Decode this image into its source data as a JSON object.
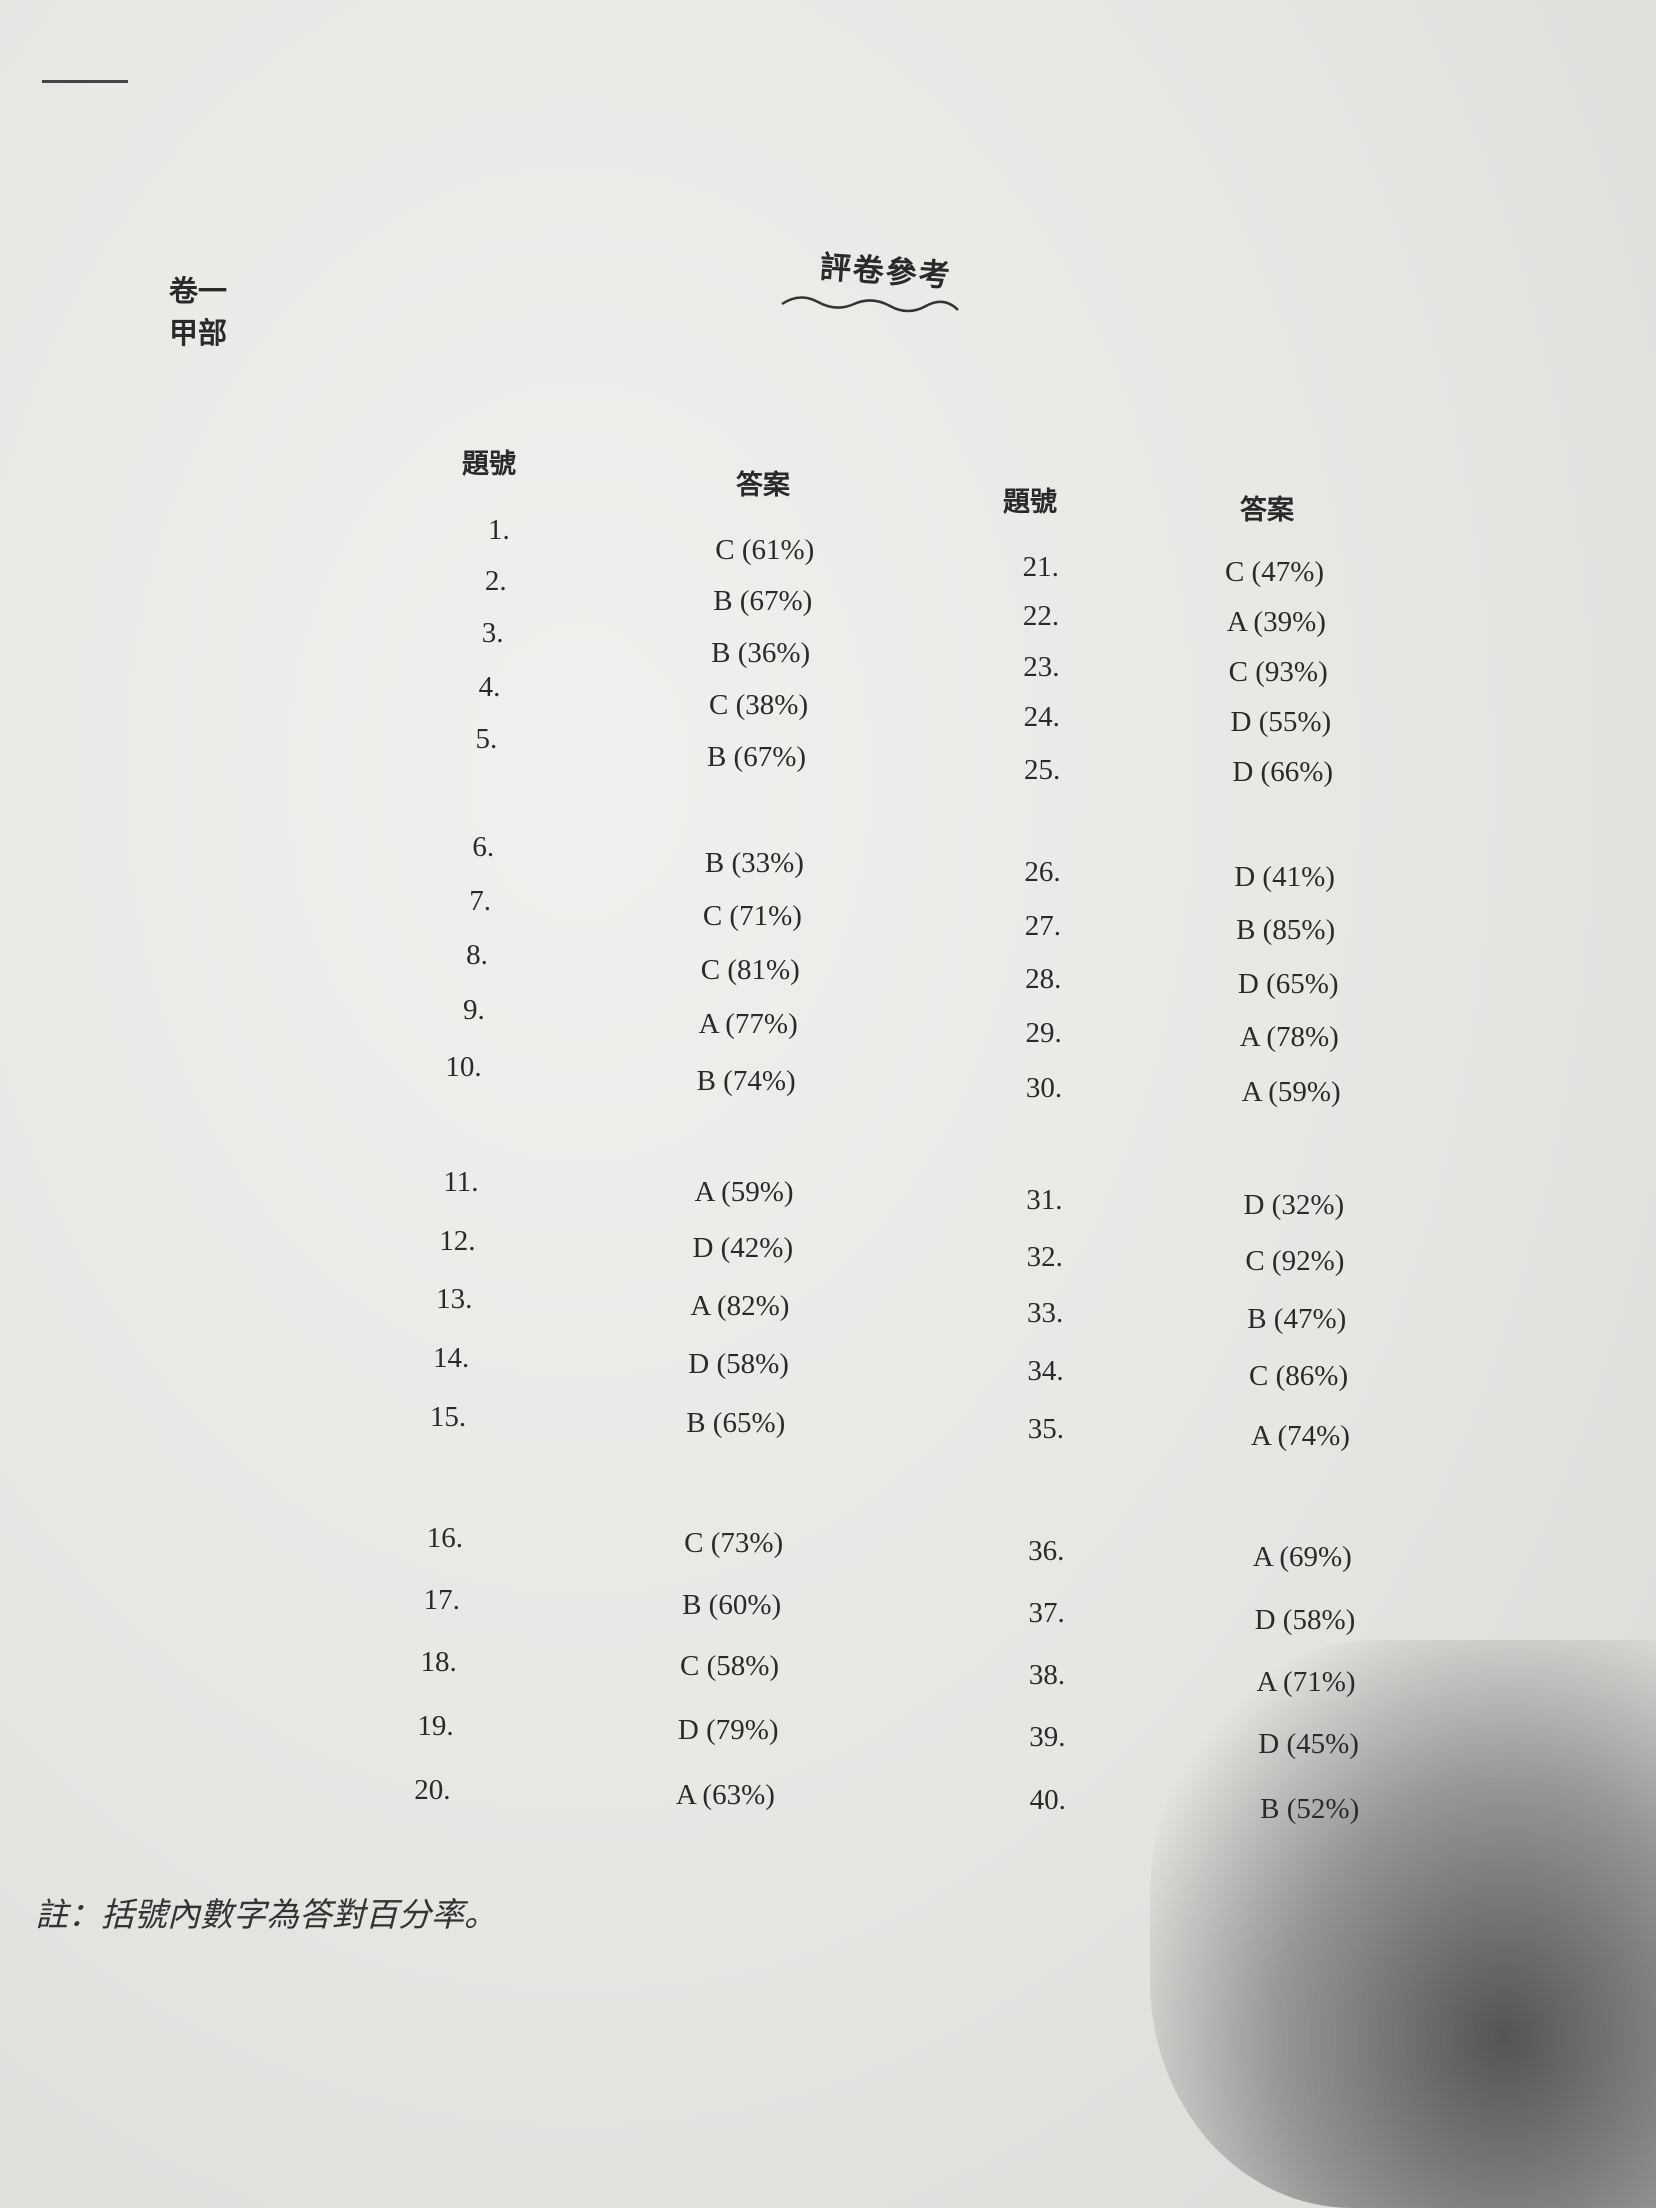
{
  "header": {
    "paper": "卷一",
    "section": "甲部",
    "title": "評卷參考"
  },
  "columns": {
    "question_label": "題號",
    "answer_label": "答案"
  },
  "answers": [
    {
      "q": "1.",
      "a": "C (61%)"
    },
    {
      "q": "2.",
      "a": "B (67%)"
    },
    {
      "q": "3.",
      "a": "B (36%)"
    },
    {
      "q": "4.",
      "a": "C (38%)"
    },
    {
      "q": "5.",
      "a": "B (67%)"
    },
    {
      "q": "6.",
      "a": "B (33%)"
    },
    {
      "q": "7.",
      "a": "C (71%)"
    },
    {
      "q": "8.",
      "a": "C (81%)"
    },
    {
      "q": "9.",
      "a": "A (77%)"
    },
    {
      "q": "10.",
      "a": "B (74%)"
    },
    {
      "q": "11.",
      "a": "A (59%)"
    },
    {
      "q": "12.",
      "a": "D (42%)"
    },
    {
      "q": "13.",
      "a": "A (82%)"
    },
    {
      "q": "14.",
      "a": "D (58%)"
    },
    {
      "q": "15.",
      "a": "B (65%)"
    },
    {
      "q": "16.",
      "a": "C (73%)"
    },
    {
      "q": "17.",
      "a": "B (60%)"
    },
    {
      "q": "18.",
      "a": "C (58%)"
    },
    {
      "q": "19.",
      "a": "D (79%)"
    },
    {
      "q": "20.",
      "a": "A (63%)"
    },
    {
      "q": "21.",
      "a": "C (47%)"
    },
    {
      "q": "22.",
      "a": "A (39%)"
    },
    {
      "q": "23.",
      "a": "C (93%)"
    },
    {
      "q": "24.",
      "a": "D (55%)"
    },
    {
      "q": "25.",
      "a": "D (66%)"
    },
    {
      "q": "26.",
      "a": "D (41%)"
    },
    {
      "q": "27.",
      "a": "B (85%)"
    },
    {
      "q": "28.",
      "a": "D (65%)"
    },
    {
      "q": "29.",
      "a": "A (78%)"
    },
    {
      "q": "30.",
      "a": "A (59%)"
    },
    {
      "q": "31.",
      "a": "D (32%)"
    },
    {
      "q": "32.",
      "a": "C (92%)"
    },
    {
      "q": "33.",
      "a": "B (47%)"
    },
    {
      "q": "34.",
      "a": "C (86%)"
    },
    {
      "q": "35.",
      "a": "A (74%)"
    },
    {
      "q": "36.",
      "a": "A (69%)"
    },
    {
      "q": "37.",
      "a": "D (58%)"
    },
    {
      "q": "38.",
      "a": "A (71%)"
    },
    {
      "q": "39.",
      "a": "D (45%)"
    },
    {
      "q": "40.",
      "a": "B (52%)"
    }
  ],
  "footnote": "註：括號內數字為答對百分率。"
}
